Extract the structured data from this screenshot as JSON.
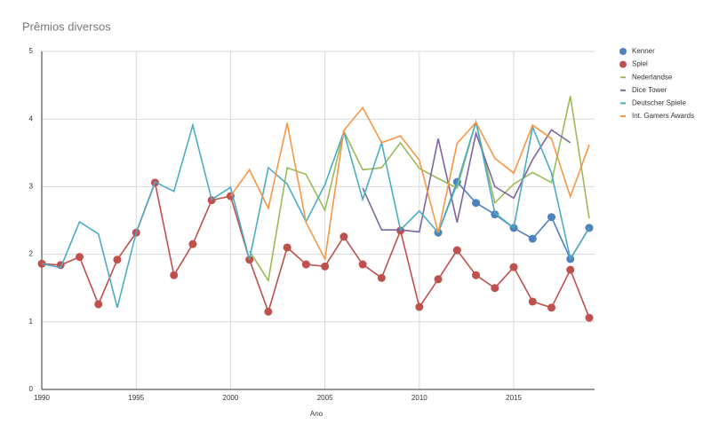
{
  "chart_data": {
    "type": "line",
    "title": "Prêmios diversos",
    "x_label": "Ano",
    "x": [
      1990,
      1991,
      1992,
      1993,
      1994,
      1995,
      1996,
      1997,
      1998,
      1999,
      2000,
      2001,
      2002,
      2003,
      2004,
      2005,
      2006,
      2007,
      2008,
      2009,
      2010,
      2011,
      2012,
      2013,
      2014,
      2015,
      2016,
      2017,
      2018,
      2019
    ],
    "xlim": [
      1990,
      2019
    ],
    "xticks": [
      1990,
      1995,
      2000,
      2005,
      2010,
      2015
    ],
    "ylim": [
      0,
      5
    ],
    "yticks": [
      0,
      1,
      2,
      3,
      4,
      5
    ],
    "grid": true,
    "legend": "right",
    "series": [
      {
        "name": "Kenner",
        "color": "#4f81bd",
        "marker": true,
        "values": [
          null,
          null,
          null,
          null,
          null,
          null,
          null,
          null,
          null,
          null,
          null,
          null,
          null,
          null,
          null,
          null,
          null,
          null,
          null,
          null,
          null,
          2.32,
          3.07,
          2.76,
          2.59,
          2.39,
          2.23,
          2.55,
          1.93,
          2.39
        ]
      },
      {
        "name": "Spiel",
        "color": "#c0504d",
        "marker": true,
        "values": [
          1.86,
          1.84,
          1.96,
          1.26,
          1.92,
          2.32,
          3.06,
          1.69,
          2.15,
          2.8,
          2.86,
          1.92,
          1.15,
          2.1,
          1.85,
          1.82,
          2.26,
          1.85,
          1.65,
          2.35,
          1.22,
          1.63,
          2.06,
          1.69,
          1.5,
          1.81,
          1.3,
          1.21,
          1.77,
          1.06
        ]
      },
      {
        "name": "Nederlandse",
        "color": "#9bbb59",
        "marker": false,
        "values": [
          null,
          null,
          null,
          null,
          null,
          null,
          null,
          null,
          null,
          null,
          null,
          2.05,
          1.61,
          3.28,
          3.18,
          2.65,
          3.82,
          3.25,
          3.28,
          3.65,
          3.27,
          3.12,
          2.98,
          3.96,
          2.76,
          3.04,
          3.21,
          3.06,
          4.34,
          2.53
        ]
      },
      {
        "name": "Dice Tower",
        "color": "#8064a2",
        "marker": false,
        "values": [
          null,
          null,
          null,
          null,
          null,
          null,
          null,
          null,
          null,
          null,
          null,
          null,
          null,
          null,
          null,
          null,
          null,
          2.98,
          2.36,
          2.36,
          2.33,
          3.71,
          2.47,
          3.79,
          3.0,
          2.83,
          3.4,
          3.84,
          3.65,
          null
        ]
      },
      {
        "name": "Deutscher Spiele",
        "color": "#4bacc6",
        "marker": false,
        "values": [
          1.86,
          1.8,
          2.48,
          2.3,
          1.21,
          2.32,
          3.07,
          2.93,
          3.91,
          2.81,
          2.99,
          1.92,
          3.28,
          3.04,
          2.48,
          3.03,
          3.81,
          2.81,
          3.65,
          2.36,
          2.64,
          2.32,
          3.04,
          3.96,
          2.61,
          2.39,
          3.88,
          3.2,
          1.93,
          2.39
        ]
      },
      {
        "name": "Int. Gamers Awards",
        "color": "#f79646",
        "marker": false,
        "values": [
          null,
          null,
          null,
          null,
          null,
          null,
          null,
          null,
          null,
          null,
          2.86,
          3.25,
          2.68,
          3.94,
          2.47,
          1.93,
          3.83,
          4.17,
          3.65,
          3.75,
          3.39,
          2.32,
          3.64,
          3.95,
          3.42,
          3.2,
          3.91,
          3.71,
          2.85,
          3.62
        ]
      }
    ]
  }
}
